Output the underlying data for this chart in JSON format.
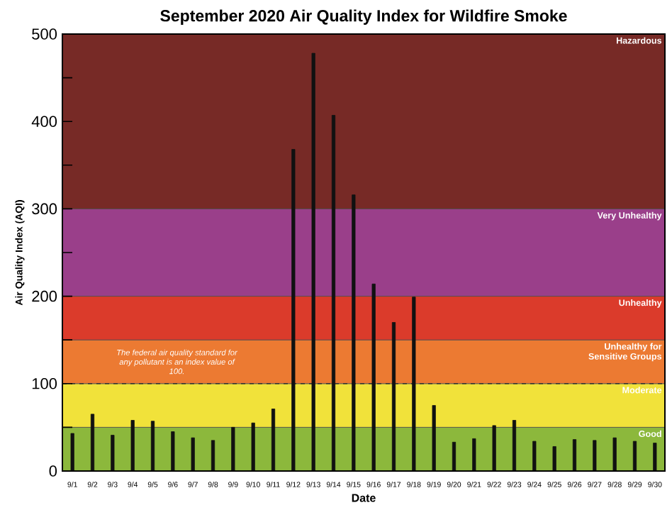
{
  "chart_data": {
    "type": "bar",
    "title": "September 2020 Air Quality Index for Wildfire Smoke",
    "xlabel": "Date",
    "ylabel": "Air Quality Index (AQI)",
    "categories": [
      "9/1",
      "9/2",
      "9/3",
      "9/4",
      "9/5",
      "9/6",
      "9/7",
      "9/8",
      "9/9",
      "9/10",
      "9/11",
      "9/12",
      "9/13",
      "9/14",
      "9/15",
      "9/16",
      "9/17",
      "9/18",
      "9/19",
      "9/20",
      "9/21",
      "9/22",
      "9/23",
      "9/24",
      "9/25",
      "9/26",
      "9/27",
      "9/28",
      "9/29",
      "9/30"
    ],
    "values": [
      43,
      65,
      41,
      58,
      57,
      45,
      38,
      35,
      50,
      55,
      71,
      368,
      478,
      407,
      316,
      214,
      170,
      199,
      75,
      33,
      37,
      52,
      58,
      34,
      28,
      36,
      35,
      38,
      34,
      32
    ],
    "color": "#111111",
    "ylim": [
      0,
      500
    ],
    "yticks": [
      0,
      {
        "value": 50,
        "label": null
      },
      100,
      {
        "value": 150,
        "label": null
      },
      200,
      {
        "value": 250,
        "label": null
      },
      300,
      {
        "value": 350,
        "label": null
      },
      400,
      {
        "value": 450,
        "label": null
      },
      500
    ],
    "bands": [
      {
        "axis": "y",
        "from": 0,
        "to": 50,
        "label": "Good",
        "color": "#8cb83c"
      },
      {
        "axis": "y",
        "from": 50,
        "to": 100,
        "label": "Moderate",
        "color": "#f1e23a"
      },
      {
        "axis": "y",
        "from": 100,
        "to": 150,
        "label": "Unhealthy for Sensitive Groups",
        "color": "#ec7a32"
      },
      {
        "axis": "y",
        "from": 150,
        "to": 200,
        "label": "Unhealthy",
        "color": "#db3b2b"
      },
      {
        "axis": "y",
        "from": 200,
        "to": 300,
        "label": "Very Unhealthy",
        "color": "#9a3f8a"
      },
      {
        "axis": "y",
        "from": 300,
        "to": 500,
        "label": "Hazardous",
        "color": "#772a26"
      }
    ],
    "ref_lines": [
      {
        "axis": "y",
        "value": 100,
        "line_style": "dashed",
        "color": "#333333"
      }
    ],
    "annotations": [
      "The federal air quality standard for any pollutant is an index value of 100."
    ],
    "grid": false
  }
}
